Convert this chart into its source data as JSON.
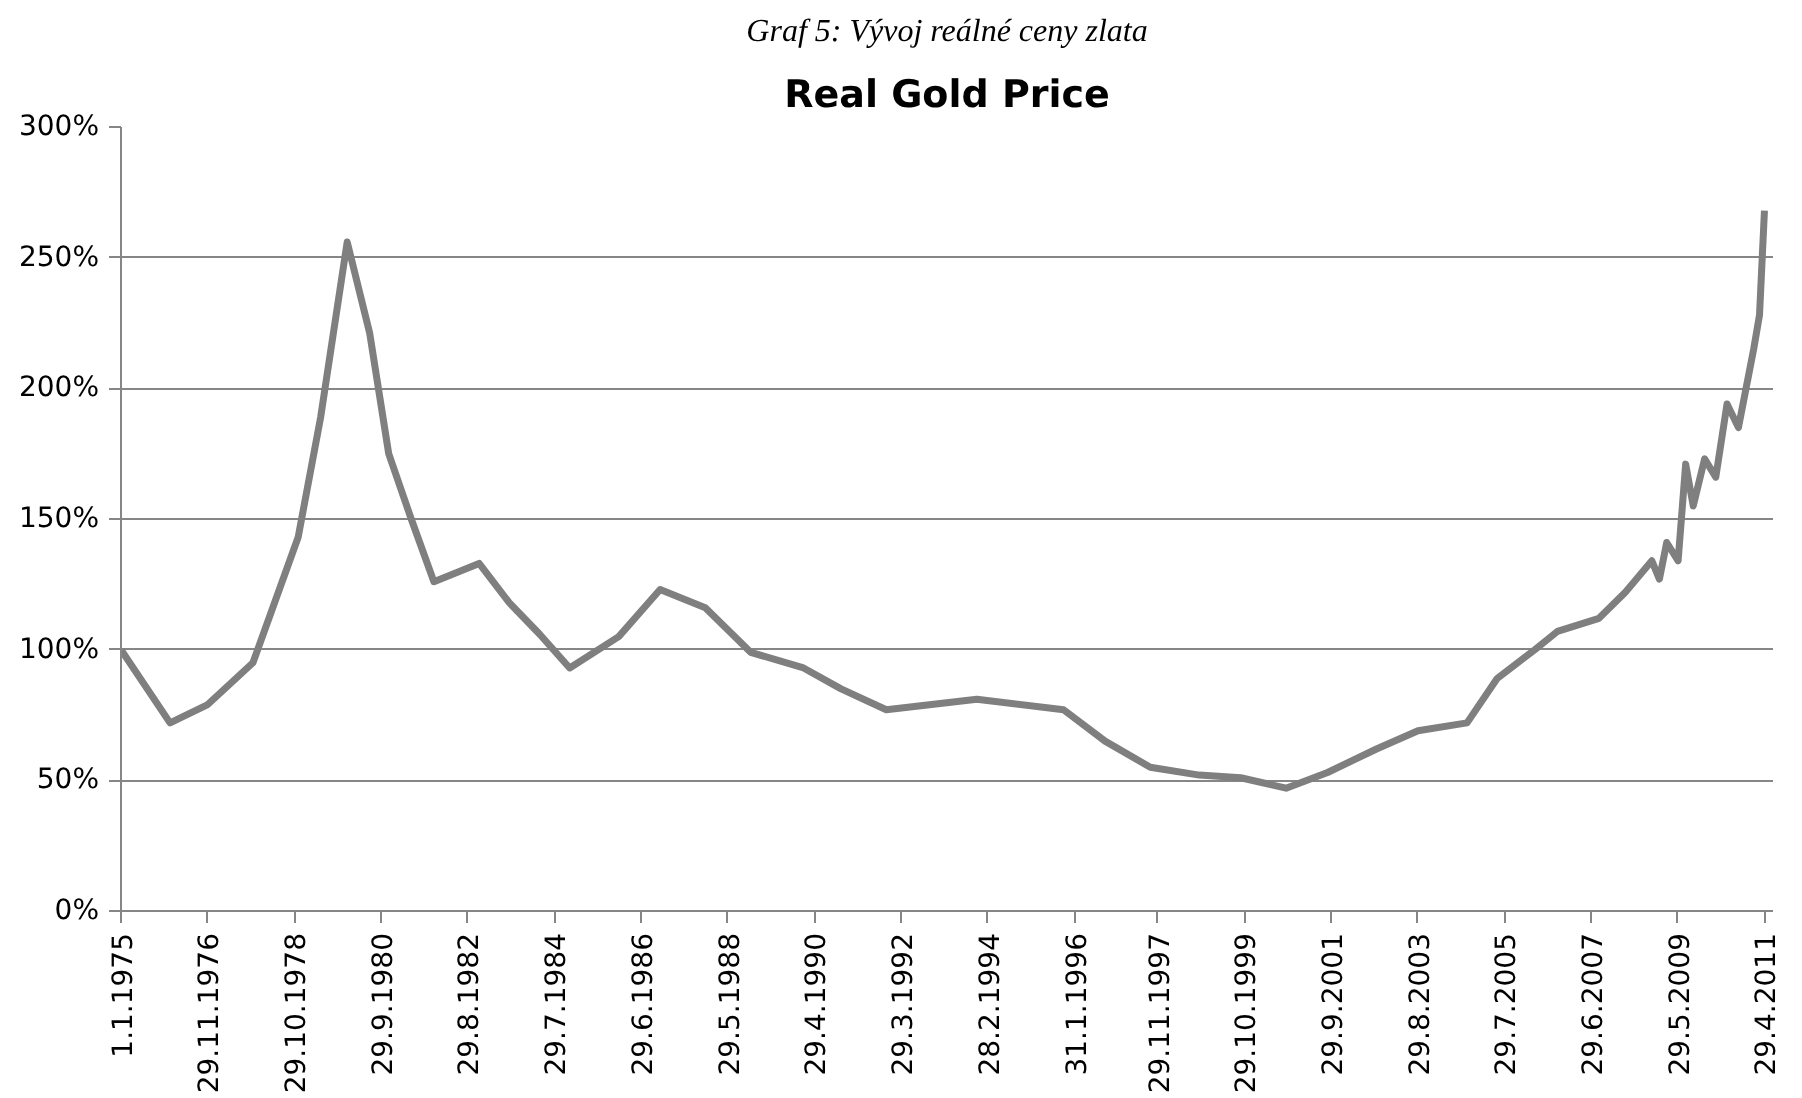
{
  "chart_data": {
    "type": "line",
    "title": "Real Gold Price",
    "annotations": [
      "Graf 5: Vývoj reálné ceny zlata"
    ],
    "x": [
      "1975-01",
      "1976-02",
      "1976-12",
      "1977-12",
      "1978-12",
      "1979-06",
      "1980-01",
      "1980-07",
      "1980-12",
      "1981-06",
      "1981-12",
      "1982-12",
      "1983-08",
      "1984-04",
      "1984-12",
      "1986-01",
      "1986-12",
      "1987-12",
      "1988-12",
      "1990-02",
      "1990-12",
      "1991-12",
      "1993-12",
      "1995-11",
      "1996-10",
      "1997-10",
      "1998-11",
      "1999-10",
      "2000-10",
      "2001-09",
      "2002-10",
      "2003-09",
      "2004-10",
      "2005-06",
      "2006-04",
      "2006-10",
      "2007-09",
      "2008-04",
      "2008-11",
      "2009-01",
      "2009-03",
      "2009-06",
      "2009-08",
      "2009-10",
      "2010-01",
      "2010-04",
      "2010-07",
      "2010-10",
      "2011-02",
      "2011-03-20",
      "2011-04-29"
    ],
    "series": [
      {
        "color": "#7f7f7f",
        "values": [
          100,
          72,
          79,
          95,
          143,
          189,
          256,
          221,
          175,
          150,
          126,
          133,
          118,
          106,
          93,
          105,
          123,
          116,
          99,
          93,
          85,
          77,
          81,
          77,
          65,
          55,
          52,
          51,
          47,
          53,
          62,
          69,
          72,
          89,
          100,
          107,
          112,
          122,
          134,
          127,
          141,
          134,
          171,
          155,
          173,
          166,
          194,
          185,
          215,
          228,
          268
        ]
      }
    ],
    "xlim": [
      "1975-01-01",
      "2011-07-07"
    ],
    "xticks": [
      {
        "value": "1975-01-01",
        "label": "1.1.1975"
      },
      {
        "value": "1976-11-29",
        "label": "29.11.1976"
      },
      {
        "value": "1978-10-29",
        "label": "29.10.1978"
      },
      {
        "value": "1980-09-29",
        "label": "29.9.1980"
      },
      {
        "value": "1982-08-29",
        "label": "29.8.1982"
      },
      {
        "value": "1984-07-29",
        "label": "29.7.1984"
      },
      {
        "value": "1986-06-29",
        "label": "29.6.1986"
      },
      {
        "value": "1988-05-29",
        "label": "29.5.1988"
      },
      {
        "value": "1990-04-29",
        "label": "29.4.1990"
      },
      {
        "value": "1992-03-29",
        "label": "29.3.1992"
      },
      {
        "value": "1994-02-28",
        "label": "28.2.1994"
      },
      {
        "value": "1996-01-31",
        "label": "31.1.1996"
      },
      {
        "value": "1997-11-29",
        "label": "29.11.1997"
      },
      {
        "value": "1999-10-29",
        "label": "29.10.1999"
      },
      {
        "value": "2001-09-29",
        "label": "29.9.2001"
      },
      {
        "value": "2003-08-29",
        "label": "29.8.2003"
      },
      {
        "value": "2005-07-29",
        "label": "29.7.2005"
      },
      {
        "value": "2007-06-29",
        "label": "29.6.2007"
      },
      {
        "value": "2009-05-29",
        "label": "29.5.2009"
      },
      {
        "value": "2011-04-29",
        "label": "29.4.2011"
      }
    ],
    "ylim": [
      0,
      300
    ],
    "yticks": [
      {
        "value": 0,
        "label": "0%"
      },
      {
        "value": 50,
        "label": "50%"
      },
      {
        "value": 100,
        "label": "100%"
      },
      {
        "value": 150,
        "label": "150%"
      },
      {
        "value": 200,
        "label": "200%"
      },
      {
        "value": 250,
        "label": "250%"
      },
      {
        "value": 300,
        "label": "300%"
      }
    ],
    "grid": "y",
    "marker": "none",
    "line_style": "solid"
  }
}
